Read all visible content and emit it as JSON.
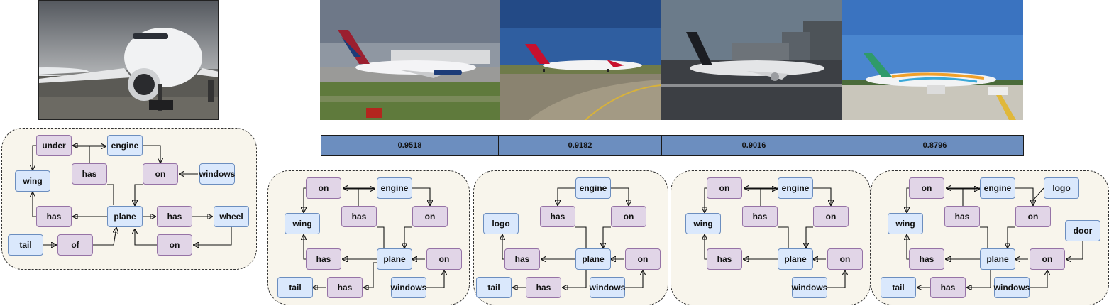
{
  "query": {
    "image": {
      "alt": "white airliner on tarmac, front view",
      "sky": "#8c9096",
      "ground": "#5b5a55"
    },
    "graph": {
      "nodes": [
        {
          "id": "under",
          "label": "under",
          "kind": "rel"
        },
        {
          "id": "engine",
          "label": "engine",
          "kind": "obj"
        },
        {
          "id": "wing",
          "label": "wing",
          "kind": "obj"
        },
        {
          "id": "has1",
          "label": "has",
          "kind": "rel"
        },
        {
          "id": "on1",
          "label": "on",
          "kind": "rel"
        },
        {
          "id": "windows",
          "label": "windows",
          "kind": "obj"
        },
        {
          "id": "has2",
          "label": "has",
          "kind": "rel"
        },
        {
          "id": "plane",
          "label": "plane",
          "kind": "obj"
        },
        {
          "id": "has3",
          "label": "has",
          "kind": "rel"
        },
        {
          "id": "wheel",
          "label": "wheel",
          "kind": "obj"
        },
        {
          "id": "tail",
          "label": "tail",
          "kind": "obj"
        },
        {
          "id": "of",
          "label": "of",
          "kind": "rel"
        },
        {
          "id": "on2",
          "label": "on",
          "kind": "rel"
        }
      ]
    }
  },
  "results": [
    {
      "score": "0.9518",
      "image": {
        "alt": "Delta airliner at airport",
        "sky": "#6e7888",
        "ground": "#5f7a3c"
      },
      "graph": {
        "nodes": [
          {
            "id": "on1",
            "label": "on",
            "kind": "rel"
          },
          {
            "id": "engine",
            "label": "engine",
            "kind": "obj"
          },
          {
            "id": "wing",
            "label": "wing",
            "kind": "obj"
          },
          {
            "id": "has1",
            "label": "has",
            "kind": "rel"
          },
          {
            "id": "on2",
            "label": "on",
            "kind": "rel"
          },
          {
            "id": "has2",
            "label": "has",
            "kind": "rel"
          },
          {
            "id": "plane",
            "label": "plane",
            "kind": "obj"
          },
          {
            "id": "on3",
            "label": "on",
            "kind": "rel"
          },
          {
            "id": "tail",
            "label": "tail",
            "kind": "obj"
          },
          {
            "id": "has3",
            "label": "has",
            "kind": "rel"
          },
          {
            "id": "windows",
            "label": "windows",
            "kind": "obj"
          }
        ]
      }
    },
    {
      "score": "0.9182",
      "image": {
        "alt": "Qantas-style jet on taxiway",
        "sky": "#2f5ea0",
        "ground": "#8a8370"
      },
      "graph": {
        "nodes": [
          {
            "id": "engine",
            "label": "engine",
            "kind": "obj"
          },
          {
            "id": "logo",
            "label": "logo",
            "kind": "obj"
          },
          {
            "id": "has1",
            "label": "has",
            "kind": "rel"
          },
          {
            "id": "on1",
            "label": "on",
            "kind": "rel"
          },
          {
            "id": "has2",
            "label": "has",
            "kind": "rel"
          },
          {
            "id": "plane",
            "label": "plane",
            "kind": "obj"
          },
          {
            "id": "on2",
            "label": "on",
            "kind": "rel"
          },
          {
            "id": "tail",
            "label": "tail",
            "kind": "obj"
          },
          {
            "id": "has3",
            "label": "has",
            "kind": "rel"
          },
          {
            "id": "windows",
            "label": "windows",
            "kind": "obj"
          }
        ]
      }
    },
    {
      "score": "0.9016",
      "image": {
        "alt": "Star Alliance jet on runway",
        "sky": "#6b7b8a",
        "ground": "#3c3f44"
      },
      "graph": {
        "nodes": [
          {
            "id": "on1",
            "label": "on",
            "kind": "rel"
          },
          {
            "id": "engine",
            "label": "engine",
            "kind": "obj"
          },
          {
            "id": "wing",
            "label": "wing",
            "kind": "obj"
          },
          {
            "id": "has1",
            "label": "has",
            "kind": "rel"
          },
          {
            "id": "on2",
            "label": "on",
            "kind": "rel"
          },
          {
            "id": "has2",
            "label": "has",
            "kind": "rel"
          },
          {
            "id": "plane",
            "label": "plane",
            "kind": "obj"
          },
          {
            "id": "on3",
            "label": "on",
            "kind": "rel"
          },
          {
            "id": "windows",
            "label": "windows",
            "kind": "obj"
          }
        ]
      }
    },
    {
      "score": "0.8796",
      "image": {
        "alt": "colorful livery jet at gate",
        "sky": "#4a86cf",
        "ground": "#c9c6bb"
      },
      "graph": {
        "nodes": [
          {
            "id": "on1",
            "label": "on",
            "kind": "rel"
          },
          {
            "id": "engine",
            "label": "engine",
            "kind": "obj"
          },
          {
            "id": "logo",
            "label": "logo",
            "kind": "obj"
          },
          {
            "id": "wing",
            "label": "wing",
            "kind": "obj"
          },
          {
            "id": "has1",
            "label": "has",
            "kind": "rel"
          },
          {
            "id": "on2",
            "label": "on",
            "kind": "rel"
          },
          {
            "id": "door",
            "label": "door",
            "kind": "obj"
          },
          {
            "id": "has2",
            "label": "has",
            "kind": "rel"
          },
          {
            "id": "plane",
            "label": "plane",
            "kind": "obj"
          },
          {
            "id": "on3",
            "label": "on",
            "kind": "rel"
          },
          {
            "id": "tail",
            "label": "tail",
            "kind": "obj"
          },
          {
            "id": "has3",
            "label": "has",
            "kind": "rel"
          },
          {
            "id": "windows",
            "label": "windows",
            "kind": "obj"
          }
        ]
      }
    }
  ]
}
